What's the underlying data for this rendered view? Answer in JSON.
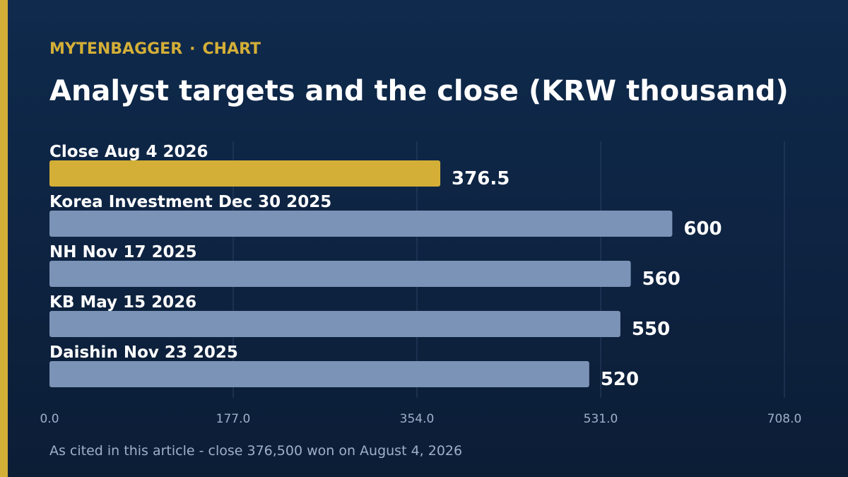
{
  "header": {
    "brand": "MYTENBAGGER",
    "separator": "·",
    "section": "CHART",
    "title": "Analyst targets and the close (KRW thousand)"
  },
  "footnote": "As cited in this article - close 376,500 won on August 4, 2026",
  "colors": {
    "accent": "#d4af37",
    "bar": "#7b93b6",
    "grid": "#2a4163",
    "text": "#ffffff",
    "muted": "#9fb0c8"
  },
  "chart_data": {
    "type": "bar",
    "orientation": "horizontal",
    "title": "Analyst targets and the close (KRW thousand)",
    "categories": [
      "Close Aug 4 2026",
      "Korea Investment Dec 30 2025",
      "NH Nov 17 2025",
      "KB May 15 2026",
      "Daishin Nov 23 2025"
    ],
    "values": [
      376.5,
      600,
      560,
      550,
      520
    ],
    "value_labels": [
      "376.5",
      "600",
      "560",
      "550",
      "520"
    ],
    "highlight_index": 0,
    "xlim": [
      0,
      708
    ],
    "xticks": [
      0,
      177,
      354,
      531,
      708
    ],
    "xtick_labels": [
      "0.0",
      "177.0",
      "354.0",
      "531.0",
      "708.0"
    ],
    "grid": true,
    "xlabel": "",
    "ylabel": ""
  }
}
